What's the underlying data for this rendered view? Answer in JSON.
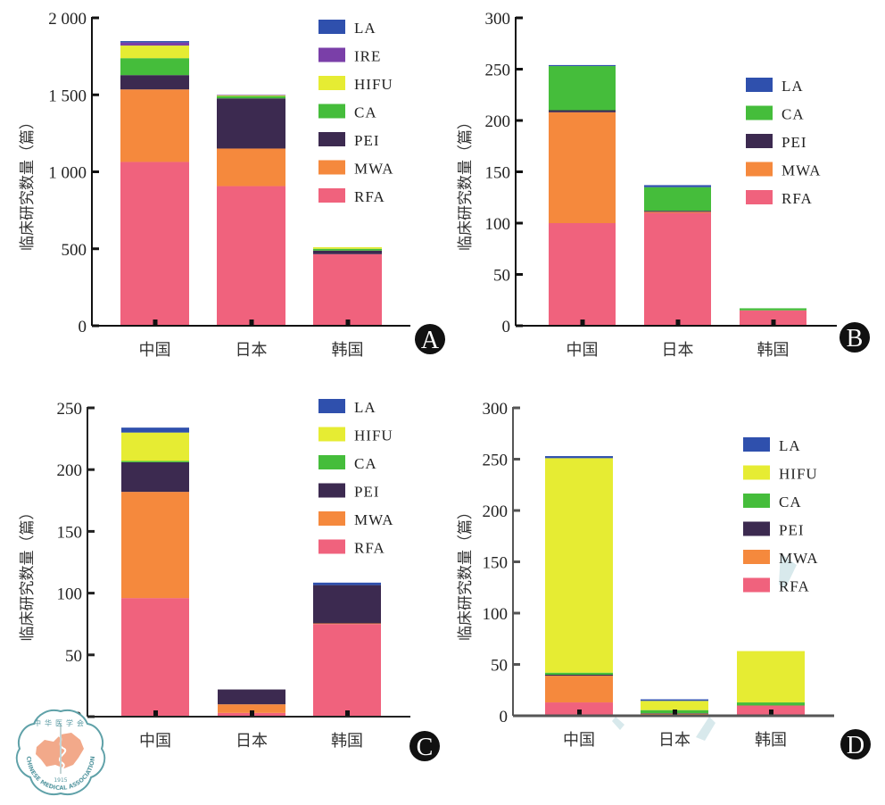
{
  "colors": {
    "LA": "#2f50ad",
    "IRE": "#7a3fa8",
    "HIFU": "#e6ec33",
    "CA": "#45bd3b",
    "PEI": "#3c2a50",
    "MWA": "#f5893d",
    "RFA": "#f0627d"
  },
  "logo": {
    "cn_text": "中华医学会",
    "en_text": "CHINESE MEDICAL ASSOCIATION",
    "year": "1915"
  },
  "chart_data": [
    {
      "panel": "A",
      "type": "bar",
      "stacked": true,
      "title": "",
      "xlabel": "",
      "ylabel": "临床研究数量（篇）",
      "categories": [
        "中国",
        "日本",
        "韩国"
      ],
      "ylim": [
        0,
        2000
      ],
      "yticks": [
        0,
        500,
        1000,
        1500,
        2000
      ],
      "ytick_labels": [
        "0",
        "500",
        "1 000",
        "1 500",
        "2 000"
      ],
      "legend": [
        "LA",
        "IRE",
        "HIFU",
        "CA",
        "PEI",
        "MWA",
        "RFA"
      ],
      "legend_position": "top-right",
      "series": [
        {
          "name": "RFA",
          "values": [
            1064,
            907,
            465
          ]
        },
        {
          "name": "MWA",
          "values": [
            471,
            244,
            0
          ]
        },
        {
          "name": "PEI",
          "values": [
            93,
            326,
            23
          ]
        },
        {
          "name": "CA",
          "values": [
            110,
            15,
            12
          ]
        },
        {
          "name": "HIFU",
          "values": [
            82,
            5,
            10
          ]
        },
        {
          "name": "IRE",
          "values": [
            20,
            3,
            0
          ]
        },
        {
          "name": "LA",
          "values": [
            9,
            0,
            0
          ]
        }
      ]
    },
    {
      "panel": "B",
      "type": "bar",
      "stacked": true,
      "title": "",
      "xlabel": "",
      "ylabel": "临床研究数量（篇）",
      "categories": [
        "中国",
        "日本",
        "韩国"
      ],
      "ylim": [
        0,
        300
      ],
      "yticks": [
        0,
        50,
        100,
        150,
        200,
        250,
        300
      ],
      "ytick_labels": [
        "0",
        "50",
        "100",
        "150",
        "200",
        "250",
        "300"
      ],
      "legend": [
        "LA",
        "CA",
        "PEI",
        "MWA",
        "RFA"
      ],
      "legend_position": "right",
      "series": [
        {
          "name": "RFA",
          "values": [
            100,
            110,
            15
          ]
        },
        {
          "name": "MWA",
          "values": [
            108,
            1,
            0
          ]
        },
        {
          "name": "PEI",
          "values": [
            2,
            1,
            0
          ]
        },
        {
          "name": "CA",
          "values": [
            43,
            23,
            2
          ]
        },
        {
          "name": "LA",
          "values": [
            1,
            2,
            0
          ]
        }
      ]
    },
    {
      "panel": "C",
      "type": "bar",
      "stacked": true,
      "title": "",
      "xlabel": "",
      "ylabel": "临床研究数量（篇）",
      "categories": [
        "中国",
        "日本",
        "韩国"
      ],
      "ylim": [
        0,
        250
      ],
      "yticks": [
        0,
        50,
        100,
        150,
        200,
        250
      ],
      "ytick_labels": [
        "0",
        "50",
        "100",
        "150",
        "200",
        "250"
      ],
      "legend": [
        "LA",
        "HIFU",
        "CA",
        "PEI",
        "MWA",
        "RFA"
      ],
      "legend_position": "top-right",
      "series": [
        {
          "name": "RFA",
          "values": [
            96,
            3,
            75
          ]
        },
        {
          "name": "MWA",
          "values": [
            86,
            7,
            0.5
          ]
        },
        {
          "name": "PEI",
          "values": [
            24,
            12,
            31
          ]
        },
        {
          "name": "CA",
          "values": [
            1,
            0,
            0
          ]
        },
        {
          "name": "HIFU",
          "values": [
            23,
            0,
            0
          ]
        },
        {
          "name": "LA",
          "values": [
            4,
            0,
            2
          ]
        }
      ]
    },
    {
      "panel": "D",
      "type": "bar",
      "stacked": true,
      "title": "",
      "xlabel": "",
      "ylabel": "临床研究数量（篇）",
      "categories": [
        "中国",
        "日本",
        "韩国"
      ],
      "ylim": [
        0,
        300
      ],
      "yticks": [
        0,
        50,
        100,
        150,
        200,
        250,
        300
      ],
      "ytick_labels": [
        "0",
        "50",
        "100",
        "150",
        "200",
        "250",
        "300"
      ],
      "legend": [
        "LA",
        "HIFU",
        "CA",
        "PEI",
        "MWA",
        "RFA"
      ],
      "legend_position": "right",
      "series": [
        {
          "name": "RFA",
          "values": [
            13,
            1,
            10
          ]
        },
        {
          "name": "MWA",
          "values": [
            26,
            1,
            0
          ]
        },
        {
          "name": "PEI",
          "values": [
            1,
            0.5,
            0
          ]
        },
        {
          "name": "CA",
          "values": [
            2,
            3,
            3
          ]
        },
        {
          "name": "HIFU",
          "values": [
            209,
            9,
            50
          ]
        },
        {
          "name": "LA",
          "values": [
            2,
            1.5,
            0
          ]
        }
      ]
    }
  ]
}
